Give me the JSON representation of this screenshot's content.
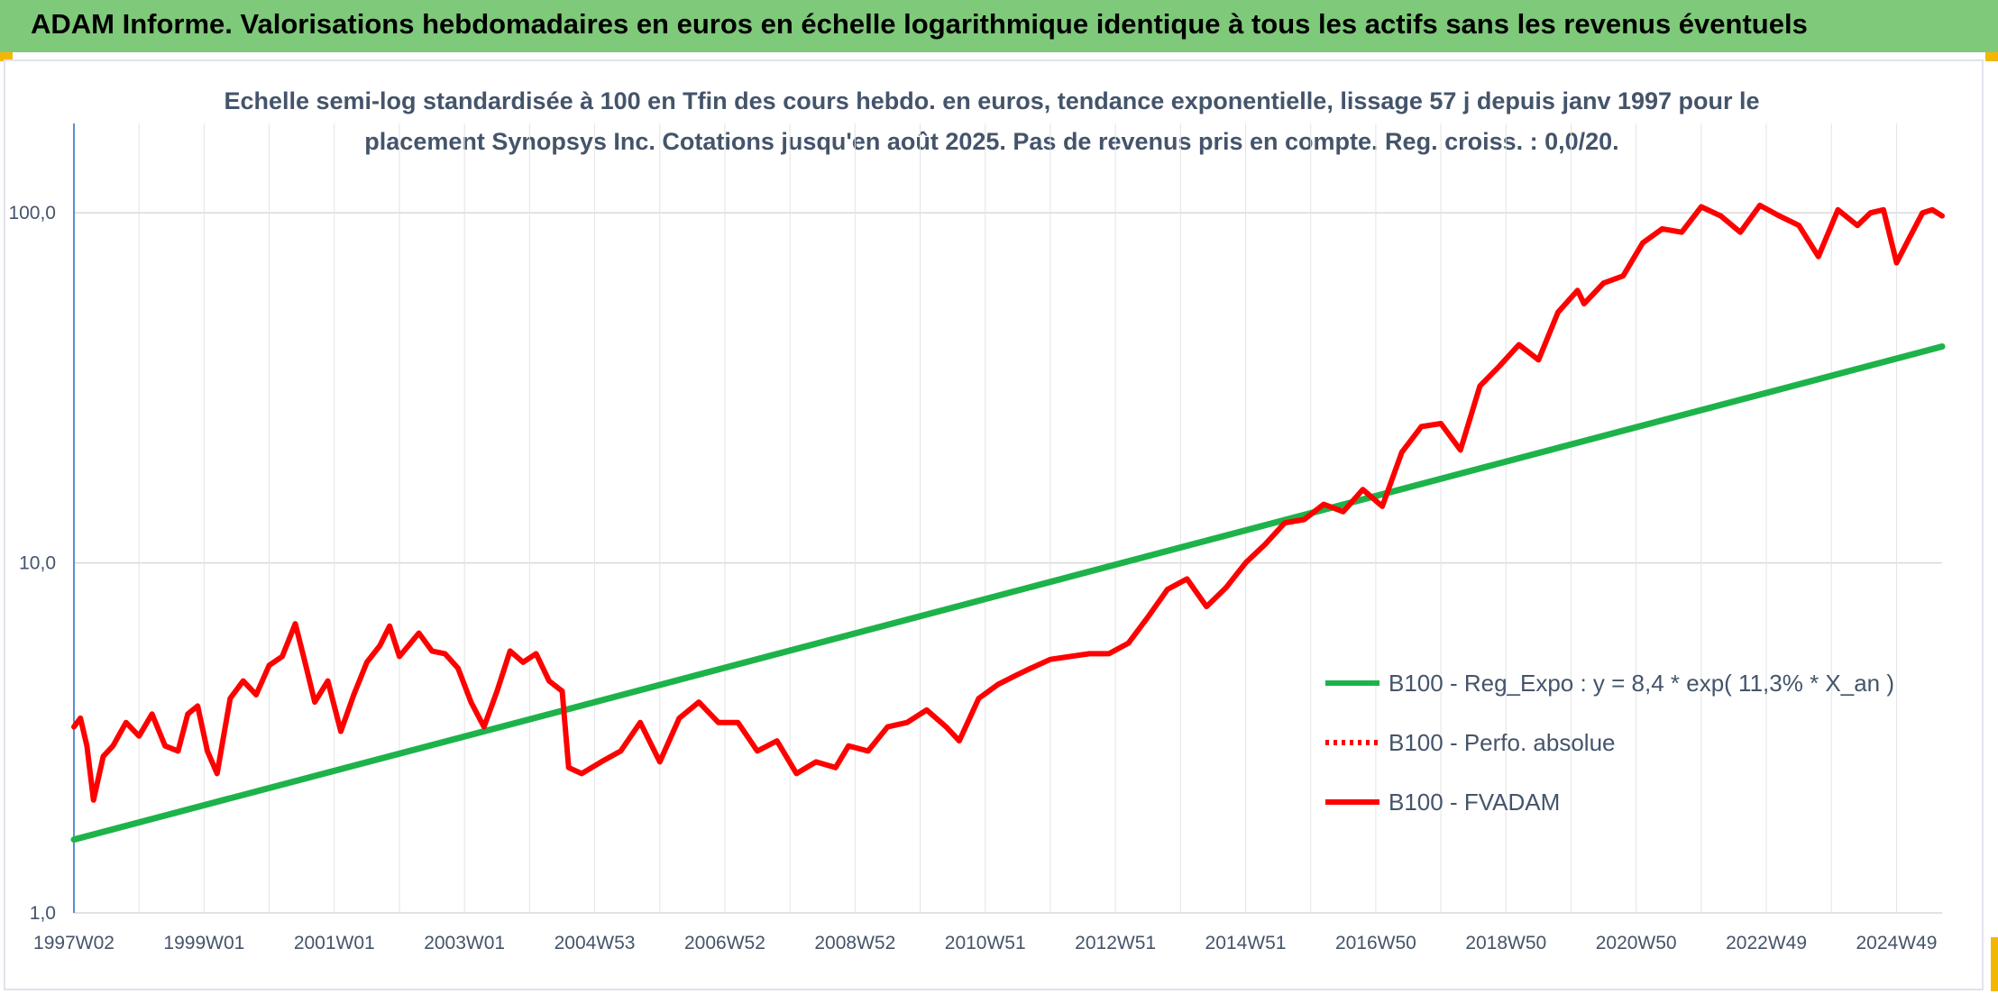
{
  "header": {
    "title": "ADAM Informe. Valorisations hebdomadaires en euros en échelle logarithmique identique à tous les actifs sans les revenus éventuels"
  },
  "chart_data": {
    "type": "line",
    "title_line1": "Echelle semi-log standardisée à 100 en Tfin des cours hebdo. en euros, tendance exponentielle, lissage 57 j depuis janv 1997 pour le",
    "title_line2": "placement Synopsys Inc. Cotations jusqu'en août 2025. Pas de revenus pris en compte. Reg. croiss. : 0,0/20.",
    "y_scale": "log",
    "ylim": [
      1,
      180
    ],
    "xlim": [
      1997.0,
      2025.7
    ],
    "grid": true,
    "legend_position": "right",
    "y_ticks": [
      {
        "value": 1,
        "label": "1,0"
      },
      {
        "value": 10,
        "label": "10,0"
      },
      {
        "value": 100,
        "label": "100,0"
      }
    ],
    "x_ticks": [
      {
        "value": 1997.0,
        "label": "1997W02"
      },
      {
        "value": 1999.0,
        "label": "1999W01"
      },
      {
        "value": 2001.0,
        "label": "2001W01"
      },
      {
        "value": 2003.0,
        "label": "2003W01"
      },
      {
        "value": 2005.0,
        "label": "2004W53"
      },
      {
        "value": 2007.0,
        "label": "2006W52"
      },
      {
        "value": 2009.0,
        "label": "2008W52"
      },
      {
        "value": 2011.0,
        "label": "2010W51"
      },
      {
        "value": 2013.0,
        "label": "2012W51"
      },
      {
        "value": 2015.0,
        "label": "2014W51"
      },
      {
        "value": 2017.0,
        "label": "2016W50"
      },
      {
        "value": 2019.0,
        "label": "2018W50"
      },
      {
        "value": 2021.0,
        "label": "2020W50"
      },
      {
        "value": 2023.0,
        "label": "2022W49"
      },
      {
        "value": 2025.0,
        "label": "2024W49"
      }
    ],
    "series": [
      {
        "name": "B100 - Reg_Expo : y = 8,4 * exp( 11,3% *  X_an )",
        "color": "#1db34a",
        "style": "solid",
        "x": [
          1997.0,
          2025.7
        ],
        "values": [
          1.62,
          41.5
        ]
      },
      {
        "name": "B100 - Perfo. absolue",
        "color": "#ff0000",
        "style": "dotted",
        "x": [],
        "values": []
      },
      {
        "name": "B100 - FVADAM",
        "color": "#ff0000",
        "style": "solid",
        "x": [
          1997.0,
          1997.1,
          1997.2,
          1997.3,
          1997.45,
          1997.6,
          1997.8,
          1998.0,
          1998.2,
          1998.4,
          1998.6,
          1998.75,
          1998.9,
          1999.05,
          1999.2,
          1999.4,
          1999.6,
          1999.8,
          2000.0,
          2000.2,
          2000.4,
          2000.55,
          2000.7,
          2000.9,
          2001.1,
          2001.3,
          2001.5,
          2001.7,
          2001.85,
          2002.0,
          2002.3,
          2002.5,
          2002.7,
          2002.9,
          2003.1,
          2003.3,
          2003.5,
          2003.7,
          2003.9,
          2004.1,
          2004.3,
          2004.5,
          2004.6,
          2004.8,
          2005.1,
          2005.4,
          2005.7,
          2006.0,
          2006.3,
          2006.6,
          2006.9,
          2007.2,
          2007.5,
          2007.8,
          2008.1,
          2008.4,
          2008.7,
          2008.9,
          2009.2,
          2009.5,
          2009.8,
          2010.1,
          2010.4,
          2010.6,
          2010.9,
          2011.2,
          2011.5,
          2011.7,
          2012.0,
          2012.3,
          2012.6,
          2012.9,
          2013.2,
          2013.5,
          2013.8,
          2014.1,
          2014.4,
          2014.7,
          2015.0,
          2015.3,
          2015.6,
          2015.9,
          2016.2,
          2016.5,
          2016.8,
          2017.1,
          2017.4,
          2017.7,
          2018.0,
          2018.3,
          2018.6,
          2018.9,
          2019.2,
          2019.5,
          2019.8,
          2020.1,
          2020.2,
          2020.5,
          2020.8,
          2021.1,
          2021.4,
          2021.7,
          2022.0,
          2022.3,
          2022.6,
          2022.9,
          2023.2,
          2023.5,
          2023.8,
          2024.1,
          2024.4,
          2024.6,
          2024.8,
          2025.0,
          2025.2,
          2025.4,
          2025.55,
          2025.7
        ],
        "values": [
          3.4,
          3.6,
          3.0,
          2.1,
          2.8,
          3.0,
          3.5,
          3.2,
          3.7,
          3.0,
          2.9,
          3.7,
          3.9,
          2.9,
          2.5,
          4.1,
          4.6,
          4.2,
          5.1,
          5.4,
          6.7,
          5.2,
          4.0,
          4.6,
          3.3,
          4.2,
          5.2,
          5.8,
          6.6,
          5.4,
          6.3,
          5.6,
          5.5,
          5.0,
          4.0,
          3.4,
          4.3,
          5.6,
          5.2,
          5.5,
          4.6,
          4.3,
          2.6,
          2.5,
          2.7,
          2.9,
          3.5,
          2.7,
          3.6,
          4.0,
          3.5,
          3.5,
          2.9,
          3.1,
          2.5,
          2.7,
          2.6,
          3.0,
          2.9,
          3.4,
          3.5,
          3.8,
          3.4,
          3.1,
          4.1,
          4.5,
          4.8,
          5.0,
          5.3,
          5.4,
          5.5,
          5.5,
          5.9,
          7.0,
          8.4,
          9.0,
          7.5,
          8.5,
          10.0,
          11.3,
          13.0,
          13.3,
          14.7,
          14.0,
          16.2,
          14.5,
          20.7,
          24.5,
          25.0,
          21.0,
          32.0,
          36.5,
          42.0,
          38.0,
          52.0,
          60.0,
          55.0,
          63.0,
          66.0,
          82.0,
          90.0,
          88.0,
          104.0,
          98.0,
          88.0,
          105.0,
          98.0,
          92.0,
          75.0,
          102.0,
          92.0,
          100.0,
          102.0,
          72.0,
          85.0,
          100.0,
          102.0,
          98.0
        ]
      }
    ]
  }
}
